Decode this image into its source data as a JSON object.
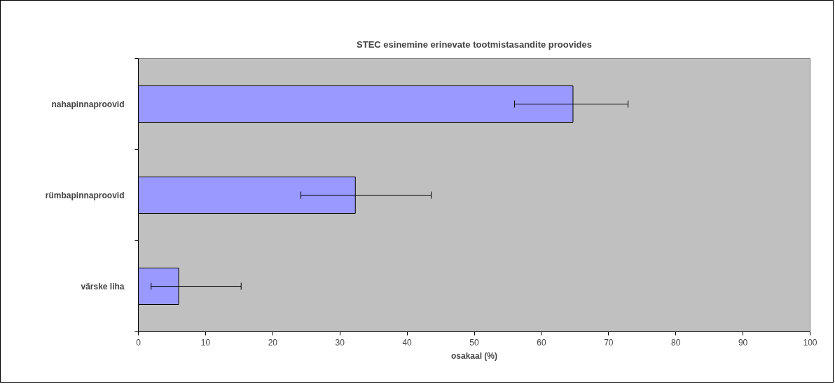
{
  "chart_data": {
    "type": "bar",
    "orientation": "horizontal",
    "title": "STEC esinemine erinevate tootmistasandite proovides",
    "xlabel": "osakaal (%)",
    "categories": [
      "nahapinnaproovid",
      "rümbapinnaproovid",
      "värske liha"
    ],
    "values": [
      64.7,
      32.3,
      6.0
    ],
    "errors": [
      [
        56.0,
        72.9
      ],
      [
        24.2,
        43.6
      ],
      [
        1.9,
        15.3
      ]
    ],
    "color": "#9999ff",
    "xlim": [
      0,
      100
    ],
    "xticks": [
      0,
      10,
      20,
      30,
      40,
      50,
      60,
      70,
      80,
      90,
      100
    ],
    "grid": false
  }
}
